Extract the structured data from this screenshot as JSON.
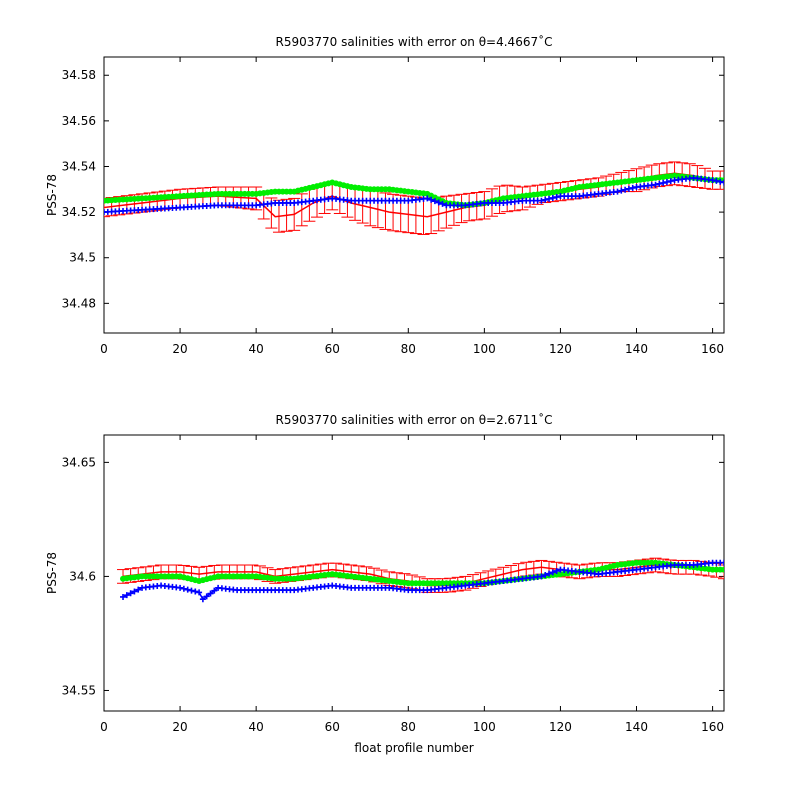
{
  "chart_data": [
    {
      "type": "line",
      "title": "R5903770 salinities with error on θ=4.4667˚C",
      "xlabel": "",
      "ylabel": "PSS-78",
      "xlim": [
        0,
        163
      ],
      "ylim": [
        34.467,
        34.588
      ],
      "xticks": [
        0,
        20,
        40,
        60,
        80,
        100,
        120,
        140,
        160
      ],
      "yticks": [
        34.48,
        34.5,
        34.52,
        34.54,
        34.56,
        34.58
      ],
      "ytick_labels": [
        "34.48",
        "34.5",
        "34.52",
        "34.54",
        "34.56",
        "34.58"
      ],
      "grid": false,
      "series": [
        {
          "role": "mapped salinity with error bars",
          "color": "#ff0000",
          "marker": "errorbar",
          "x": [
            0,
            10,
            20,
            30,
            40,
            45,
            50,
            55,
            60,
            65,
            70,
            75,
            80,
            85,
            90,
            95,
            100,
            105,
            110,
            115,
            120,
            125,
            130,
            135,
            140,
            145,
            150,
            155,
            160,
            163
          ],
          "y": [
            34.522,
            34.524,
            34.526,
            34.527,
            34.526,
            34.518,
            34.519,
            34.524,
            34.527,
            34.524,
            34.522,
            34.52,
            34.519,
            34.518,
            34.52,
            34.522,
            34.523,
            34.526,
            34.526,
            34.528,
            34.529,
            34.53,
            34.531,
            34.533,
            34.534,
            34.536,
            34.537,
            34.536,
            34.534,
            34.534
          ],
          "err": [
            0.004,
            0.004,
            0.004,
            0.004,
            0.005,
            0.007,
            0.007,
            0.007,
            0.006,
            0.007,
            0.008,
            0.008,
            0.008,
            0.008,
            0.007,
            0.006,
            0.006,
            0.006,
            0.005,
            0.004,
            0.004,
            0.004,
            0.004,
            0.004,
            0.005,
            0.005,
            0.005,
            0.005,
            0.004,
            0.004
          ]
        },
        {
          "role": "original salinity",
          "color": "#00ee00",
          "marker": "dot",
          "x": [
            0,
            10,
            20,
            30,
            40,
            45,
            50,
            55,
            60,
            65,
            70,
            75,
            80,
            85,
            90,
            95,
            100,
            105,
            110,
            115,
            120,
            125,
            130,
            135,
            140,
            145,
            150,
            155,
            160,
            163
          ],
          "y": [
            34.525,
            34.526,
            34.527,
            34.528,
            34.528,
            34.529,
            34.529,
            34.531,
            34.533,
            34.531,
            34.53,
            34.53,
            34.529,
            34.528,
            34.524,
            34.523,
            34.524,
            34.526,
            34.527,
            34.528,
            34.529,
            34.531,
            34.532,
            34.533,
            34.534,
            34.535,
            34.536,
            34.535,
            34.534,
            34.534
          ]
        },
        {
          "role": "adjusted salinity",
          "color": "#0000ff",
          "marker": "plus",
          "x": [
            0,
            10,
            20,
            30,
            40,
            45,
            50,
            55,
            60,
            65,
            70,
            75,
            80,
            85,
            90,
            95,
            100,
            105,
            110,
            115,
            120,
            125,
            130,
            135,
            140,
            145,
            150,
            155,
            160,
            163
          ],
          "y": [
            34.52,
            34.521,
            34.522,
            34.523,
            34.523,
            34.524,
            34.524,
            34.525,
            34.526,
            34.525,
            34.525,
            34.525,
            34.525,
            34.526,
            34.523,
            34.523,
            34.524,
            34.524,
            34.525,
            34.525,
            34.527,
            34.527,
            34.528,
            34.529,
            34.531,
            34.532,
            34.534,
            34.535,
            34.534,
            34.533
          ]
        }
      ]
    },
    {
      "type": "line",
      "title": "R5903770 salinities with error on θ=2.6711˚C",
      "xlabel": "float profile number",
      "ylabel": "PSS-78",
      "xlim": [
        0,
        163
      ],
      "ylim": [
        34.541,
        34.662
      ],
      "xticks": [
        0,
        20,
        40,
        60,
        80,
        100,
        120,
        140,
        160
      ],
      "yticks": [
        34.55,
        34.6,
        34.65
      ],
      "ytick_labels": [
        "34.55",
        "34.6",
        "34.65"
      ],
      "grid": false,
      "series": [
        {
          "role": "mapped salinity with error bars",
          "color": "#ff0000",
          "marker": "errorbar",
          "x": [
            5,
            10,
            15,
            20,
            25,
            30,
            35,
            40,
            45,
            50,
            55,
            60,
            65,
            70,
            75,
            80,
            85,
            90,
            95,
            100,
            105,
            110,
            115,
            120,
            125,
            130,
            135,
            140,
            145,
            150,
            155,
            160,
            163
          ],
          "y": [
            34.6,
            34.601,
            34.602,
            34.602,
            34.601,
            34.602,
            34.602,
            34.602,
            34.6,
            34.601,
            34.602,
            34.603,
            34.602,
            34.601,
            34.599,
            34.598,
            34.596,
            34.596,
            34.597,
            34.599,
            34.601,
            34.603,
            34.604,
            34.603,
            34.602,
            34.603,
            34.603,
            34.604,
            34.605,
            34.604,
            34.604,
            34.603,
            34.602
          ],
          "err": [
            0.003,
            0.003,
            0.003,
            0.003,
            0.003,
            0.003,
            0.003,
            0.003,
            0.003,
            0.003,
            0.003,
            0.003,
            0.003,
            0.003,
            0.003,
            0.003,
            0.003,
            0.003,
            0.003,
            0.003,
            0.003,
            0.003,
            0.003,
            0.003,
            0.003,
            0.003,
            0.003,
            0.003,
            0.003,
            0.003,
            0.003,
            0.003,
            0.003
          ]
        },
        {
          "role": "original salinity",
          "color": "#00ee00",
          "marker": "dot",
          "x": [
            5,
            10,
            15,
            20,
            25,
            30,
            35,
            40,
            45,
            50,
            55,
            60,
            65,
            70,
            75,
            80,
            85,
            90,
            95,
            100,
            105,
            110,
            115,
            120,
            125,
            130,
            135,
            140,
            145,
            150,
            155,
            160,
            163
          ],
          "y": [
            34.599,
            34.6,
            34.6,
            34.6,
            34.598,
            34.6,
            34.6,
            34.6,
            34.599,
            34.599,
            34.6,
            34.601,
            34.6,
            34.599,
            34.598,
            34.597,
            34.597,
            34.597,
            34.597,
            34.597,
            34.598,
            34.599,
            34.6,
            34.601,
            34.602,
            34.603,
            34.605,
            34.606,
            34.606,
            34.605,
            34.604,
            34.603,
            34.603
          ]
        },
        {
          "role": "adjusted salinity",
          "color": "#0000ff",
          "marker": "plus",
          "x": [
            5,
            10,
            15,
            20,
            25,
            26,
            30,
            35,
            40,
            45,
            50,
            55,
            60,
            65,
            70,
            75,
            80,
            85,
            90,
            95,
            100,
            105,
            110,
            115,
            120,
            125,
            130,
            135,
            140,
            145,
            150,
            155,
            160,
            163
          ],
          "y": [
            34.591,
            34.595,
            34.596,
            34.595,
            34.593,
            34.59,
            34.595,
            34.594,
            34.594,
            34.594,
            34.594,
            34.595,
            34.596,
            34.595,
            34.595,
            34.595,
            34.594,
            34.594,
            34.595,
            34.596,
            34.597,
            34.598,
            34.599,
            34.6,
            34.603,
            34.602,
            34.601,
            34.602,
            34.603,
            34.604,
            34.605,
            34.605,
            34.606,
            34.606
          ]
        }
      ]
    }
  ]
}
